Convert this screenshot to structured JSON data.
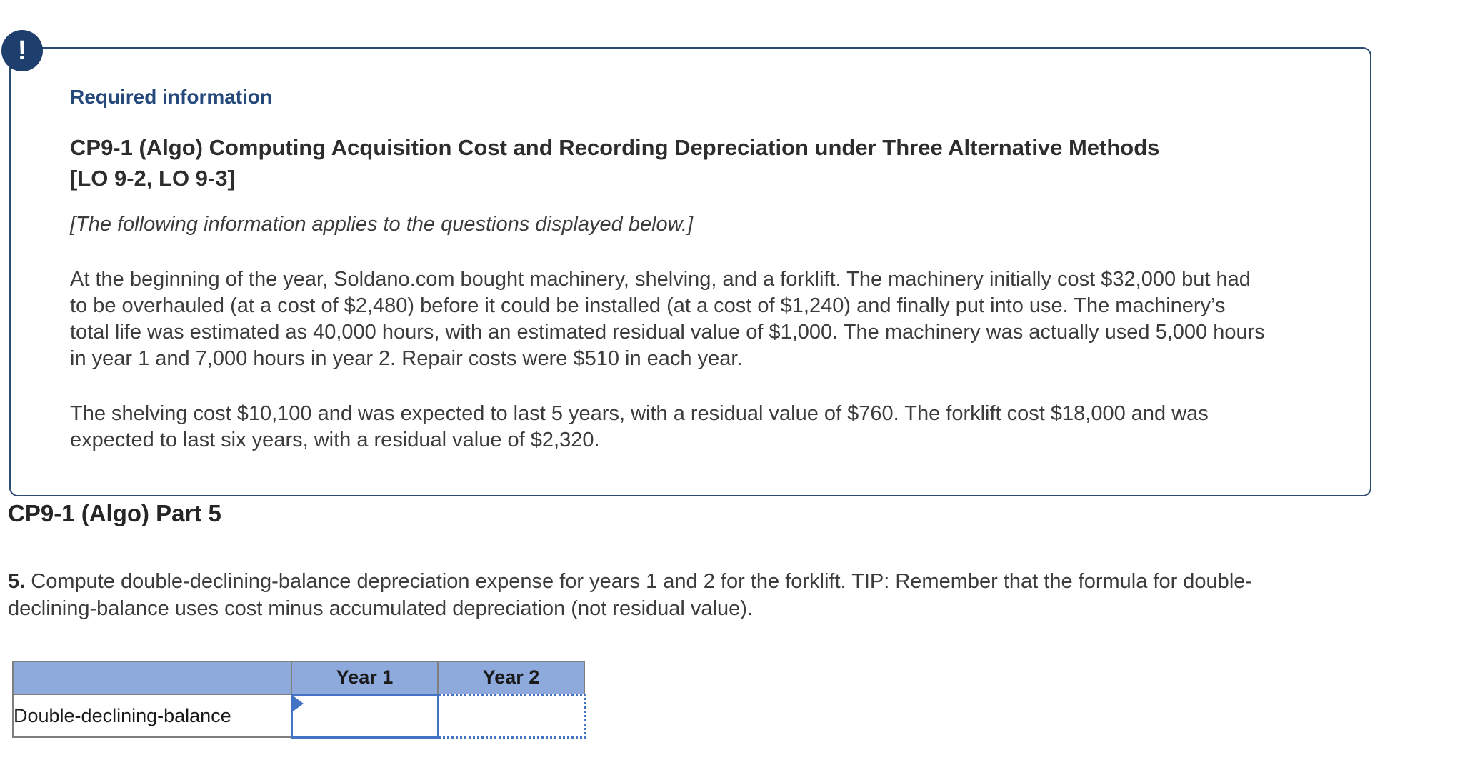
{
  "alert": {
    "icon_glyph": "!",
    "heading": "Required information",
    "title": "CP9-1 (Algo) Computing Acquisition Cost and Recording Depreciation under Three Alternative Methods\n[LO 9-2, LO 9-3]",
    "note": "[The following information applies to the questions displayed below.]",
    "paragraphs": [
      "At the beginning of the year, Soldano.com bought machinery, shelving, and a forklift. The machinery initially cost $32,000 but had to be overhauled (at a cost of $2,480) before it could be installed (at a cost of $1,240) and finally put into use. The machinery’s total life was estimated as 40,000 hours, with an estimated residual value of $1,000. The machinery was actually used 5,000 hours in year 1 and 7,000 hours in year 2. Repair costs were $510 in each year.",
      "The shelving cost $10,100 and was expected to last 5 years, with a residual value of $760. The forklift cost $18,000 and was expected to last six years, with a residual value of $2,320."
    ]
  },
  "part_heading": "CP9-1 (Algo) Part 5",
  "question": {
    "number": "5.",
    "text": " Compute double-declining-balance depreciation expense for years 1 and 2 for the forklift. TIP: Remember that the formula for double-declining-balance uses cost minus accumulated depreciation (not residual value)."
  },
  "table": {
    "columns": [
      "",
      "Year 1",
      "Year 2"
    ],
    "rows": [
      {
        "label": "Double-declining-balance",
        "year1_value": "",
        "year2_value": ""
      }
    ]
  },
  "colors": {
    "accent_navy": "#26497c",
    "box_border": "#2c4a72",
    "icon_bg": "#1e3f6d",
    "table_header_bg": "#8ea9dc",
    "table_grid": "#7f7f7f",
    "input_border_blue": "#4472c4"
  }
}
